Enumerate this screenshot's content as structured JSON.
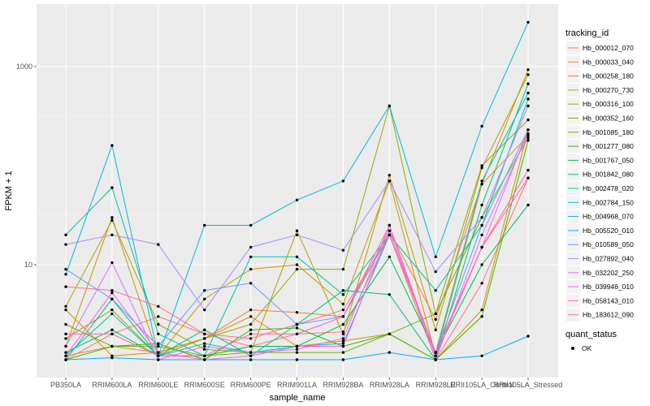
{
  "chart_data": {
    "type": "line",
    "xlabel": "sample_name",
    "ylabel": "FPKM + 1",
    "y_scale": "log10",
    "ylim": [
      1,
      3000
    ],
    "y_ticks": [
      10,
      1000
    ],
    "grid": true,
    "legend_position": "right",
    "legend_title": "tracking_id",
    "point_legend_title": "quant_status",
    "point_legend_label": "OK",
    "point_color": "#000000",
    "categories": [
      "PB350LA",
      "RRIM600LA",
      "RRIM600LE",
      "RRIM600SE",
      "RRIM600PE",
      "RRIM901LA",
      "RRIM928BA",
      "RRIM928LA",
      "RRIM928LE",
      "RRII105LA_Control",
      "RRII105LA_Stressed"
    ],
    "series": [
      {
        "name": "Hb_000012_070",
        "color": "#F8766D",
        "values": [
          1.1,
          2.0,
          3.0,
          2.0,
          1.5,
          2.0,
          2.1,
          20,
          1.1,
          6.5,
          75
        ]
      },
      {
        "name": "Hb_000033_040",
        "color": "#EC8239",
        "values": [
          1.2,
          1.5,
          1.3,
          1.8,
          3.5,
          3.3,
          3.0,
          22,
          2.8,
          65,
          200
        ]
      },
      {
        "name": "Hb_000258_180",
        "color": "#DB8E00",
        "values": [
          3.5,
          1.2,
          1.3,
          1.8,
          3.0,
          1.5,
          1.7,
          2.0,
          1.1,
          3.5,
          230
        ]
      },
      {
        "name": "Hb_000270_730",
        "color": "#C79800",
        "values": [
          1.5,
          30,
          1.2,
          4.5,
          9.0,
          10,
          4.0,
          70,
          1.2,
          65,
          930
        ]
      },
      {
        "name": "Hb_000316_100",
        "color": "#AFA100",
        "values": [
          3.8,
          28,
          2.5,
          1.4,
          1.3,
          22,
          2.0,
          80,
          2.2,
          95,
          830
        ]
      },
      {
        "name": "Hb_000352_160",
        "color": "#93AA00",
        "values": [
          1.8,
          3.5,
          1.2,
          1.8,
          2.5,
          9.0,
          9.0,
          400,
          3.2,
          100,
          290
        ]
      },
      {
        "name": "Hb_001085_180",
        "color": "#72B000",
        "values": [
          2.5,
          1.5,
          1.5,
          1.2,
          1.3,
          1.3,
          1.3,
          2.0,
          3.2,
          30,
          190
        ]
      },
      {
        "name": "Hb_001277_080",
        "color": "#39B600",
        "values": [
          1.1,
          1.5,
          1.6,
          1.1,
          2.2,
          2.3,
          1.5,
          2.0,
          1.1,
          3.0,
          180
        ]
      },
      {
        "name": "Hb_001767_050",
        "color": "#00BB4E",
        "values": [
          1.3,
          2.2,
          1.2,
          1.2,
          1.5,
          1.5,
          2.5,
          12,
          1.3,
          10,
          40
        ]
      },
      {
        "name": "Hb_001842_080",
        "color": "#00BF7D",
        "values": [
          1.1,
          4.5,
          1.2,
          2.2,
          1.2,
          2.5,
          5.5,
          5.0,
          1.1,
          40,
          670
        ]
      },
      {
        "name": "Hb_002478_020",
        "color": "#00C1A3",
        "values": [
          20,
          60,
          2.0,
          1.2,
          12,
          12,
          5.0,
          20,
          5.5,
          25,
          470
        ]
      },
      {
        "name": "Hb_002784_150",
        "color": "#00BFC4",
        "values": [
          1.2,
          3.2,
          1.2,
          1.6,
          1.3,
          1.5,
          1.6,
          20,
          1.3,
          70,
          540
        ]
      },
      {
        "name": "Hb_004968_070",
        "color": "#00B9E3",
        "values": [
          8.0,
          160,
          1.2,
          25,
          25,
          45,
          70,
          400,
          12,
          250,
          2800
        ]
      },
      {
        "name": "Hb_005520_010",
        "color": "#00ADFA",
        "values": [
          1.1,
          1.15,
          1.1,
          1.1,
          1.1,
          1.1,
          1.1,
          1.3,
          1.1,
          1.2,
          1.9
        ]
      },
      {
        "name": "Hb_010589_050",
        "color": "#619CFF",
        "values": [
          9.0,
          4.5,
          1.5,
          5.5,
          6.5,
          2.5,
          3.0,
          20,
          1.3,
          25,
          230
        ]
      },
      {
        "name": "Hb_027892_040",
        "color": "#AE87FF",
        "values": [
          16,
          20,
          16,
          3.5,
          15,
          20,
          14,
          70,
          8.5,
          30,
          400
        ]
      },
      {
        "name": "Hb_032202_250",
        "color": "#DB72FB",
        "values": [
          1.5,
          10.5,
          1.1,
          1.5,
          1.3,
          1.4,
          1.8,
          25,
          1.1,
          20,
          210
        ]
      },
      {
        "name": "Hb_039946_010",
        "color": "#F564E3",
        "values": [
          1.2,
          5.2,
          1.3,
          1.1,
          1.2,
          1.5,
          1.5,
          22,
          1.3,
          15,
          230
        ]
      },
      {
        "name": "Hb_058143_010",
        "color": "#FF61C3",
        "values": [
          2.0,
          2.0,
          1.2,
          1.2,
          2.0,
          2.0,
          3.0,
          25,
          1.2,
          15,
          75
        ]
      },
      {
        "name": "Hb_183612_090",
        "color": "#FF6C91",
        "values": [
          6.0,
          5.5,
          3.8,
          2.0,
          1.8,
          2.5,
          3.5,
          20,
          1.3,
          15,
          90
        ]
      }
    ]
  }
}
